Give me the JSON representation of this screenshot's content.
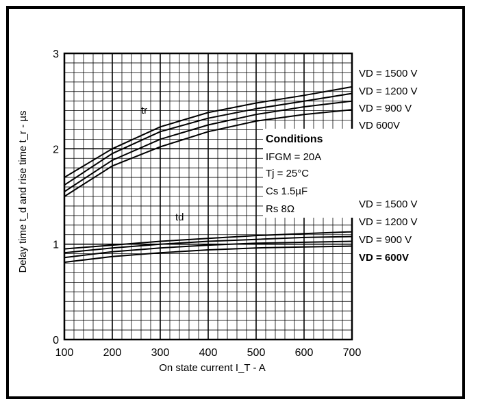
{
  "chart_data": {
    "type": "line",
    "xlabel": "On state current I_T - A",
    "ylabel": "Delay time t_d and rise time t_r - µs",
    "xlim": [
      100,
      700
    ],
    "ylim": [
      0,
      3
    ],
    "x_ticks": [
      "100",
      "200",
      "300",
      "400",
      "500",
      "600",
      "700"
    ],
    "y_ticks": [
      "0",
      "1",
      "2",
      "3"
    ],
    "grid": true,
    "groups": [
      {
        "label": "tr",
        "series": [
          {
            "name": "VD = 1500 V",
            "x": [
              100,
              200,
              300,
              400,
              500,
              600,
              700
            ],
            "y": [
              1.7,
              2.0,
              2.23,
              2.38,
              2.48,
              2.56,
              2.65
            ]
          },
          {
            "name": "VD = 1200 V",
            "x": [
              100,
              200,
              300,
              400,
              500,
              600,
              700
            ],
            "y": [
              1.62,
              1.95,
              2.18,
              2.32,
              2.42,
              2.5,
              2.58
            ]
          },
          {
            "name": "VD = 900 V",
            "x": [
              100,
              200,
              300,
              400,
              500,
              600,
              700
            ],
            "y": [
              1.55,
              1.88,
              2.1,
              2.25,
              2.36,
              2.44,
              2.5
            ]
          },
          {
            "name": "VD 600V",
            "x": [
              100,
              200,
              300,
              400,
              500,
              600,
              700
            ],
            "y": [
              1.5,
              1.82,
              2.02,
              2.18,
              2.29,
              2.36,
              2.41
            ]
          }
        ]
      },
      {
        "label": "td",
        "series": [
          {
            "name": "VD = 1500 V",
            "x": [
              100,
              200,
              300,
              400,
              500,
              600,
              700
            ],
            "y": [
              0.95,
              0.99,
              1.03,
              1.06,
              1.09,
              1.11,
              1.13
            ]
          },
          {
            "name": "VD = 1200 V",
            "x": [
              100,
              200,
              300,
              400,
              500,
              600,
              700
            ],
            "y": [
              0.91,
              0.96,
              1.0,
              1.03,
              1.05,
              1.07,
              1.08
            ]
          },
          {
            "name": "VD = 900 V",
            "x": [
              100,
              200,
              300,
              400,
              500,
              600,
              700
            ],
            "y": [
              0.86,
              0.92,
              0.96,
              0.99,
              1.01,
              1.02,
              1.03
            ]
          },
          {
            "name": "VD = 600V",
            "x": [
              100,
              200,
              300,
              400,
              500,
              600,
              700
            ],
            "y": [
              0.81,
              0.87,
              0.91,
              0.94,
              0.96,
              0.97,
              0.98
            ]
          }
        ]
      }
    ],
    "legend_upper": [
      "VD = 1500 V",
      "VD = 1200 V",
      "VD = 900 V",
      "VD 600V"
    ],
    "legend_lower": [
      "VD = 1500 V",
      "VD = 1200 V",
      "VD = 900 V",
      "VD = 600V"
    ],
    "curve_labels": [
      "tr",
      "td"
    ],
    "conditions": {
      "title": "Conditions",
      "lines": [
        "IFGM = 20A",
        "Tj = 25°C",
        "Cs 1.5µF",
        "Rs 8Ω"
      ]
    }
  }
}
